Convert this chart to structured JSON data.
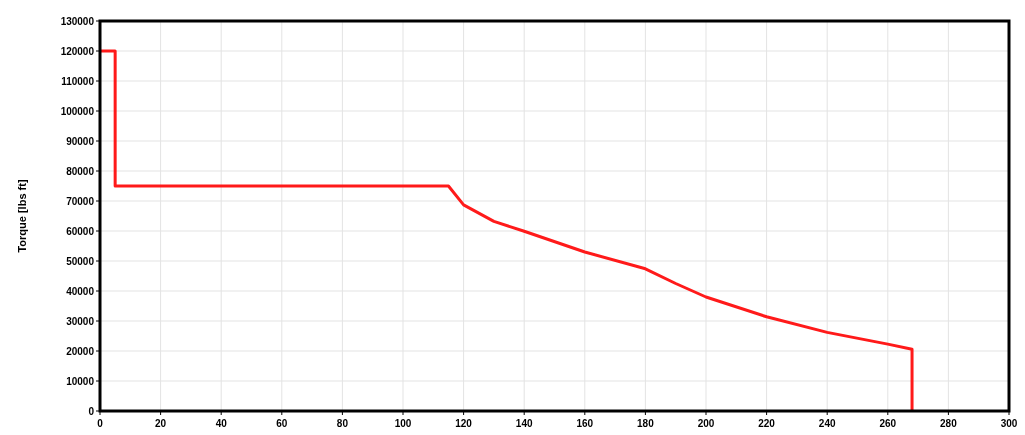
{
  "chart_data": {
    "type": "line",
    "ylabel": "Torque [lbs ft]",
    "x": [
      0,
      5,
      5,
      115,
      120,
      130,
      140,
      160,
      180,
      190,
      200,
      220,
      240,
      260,
      268,
      268
    ],
    "series": [
      {
        "color": "#ff1a1a",
        "values": [
          120000,
          120000,
          75000,
          75000,
          68700,
          63200,
          59900,
          53000,
          47400,
          42500,
          38000,
          31400,
          26200,
          22300,
          20600,
          0
        ]
      }
    ],
    "xlim": [
      0,
      300
    ],
    "xticks": [
      0,
      20,
      40,
      60,
      80,
      100,
      120,
      140,
      160,
      180,
      200,
      220,
      240,
      260,
      280,
      300
    ],
    "ylim": [
      0,
      130000
    ],
    "yticks": [
      0,
      10000,
      20000,
      30000,
      40000,
      50000,
      60000,
      70000,
      80000,
      90000,
      100000,
      110000,
      120000,
      130000
    ],
    "grid": true,
    "marker": "none",
    "line_style": "solid"
  }
}
